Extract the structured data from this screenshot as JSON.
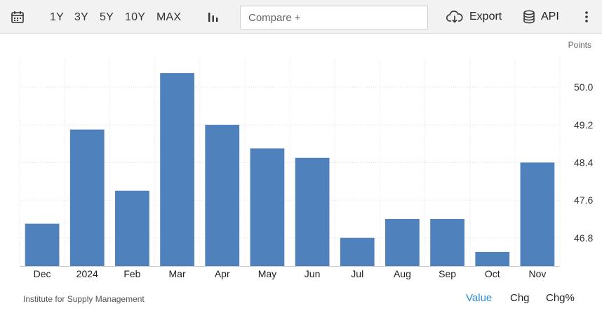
{
  "toolbar": {
    "range_buttons": [
      "1Y",
      "3Y",
      "5Y",
      "10Y",
      "MAX"
    ],
    "compare_placeholder": "Compare +",
    "export_label": "Export",
    "api_label": "API",
    "icons": [
      "calendar-icon",
      "bar-chart-icon",
      "cloud-download-icon",
      "database-icon",
      "more-vertical-icon"
    ]
  },
  "chart_data": {
    "type": "bar",
    "categories": [
      "Dec",
      "2024",
      "Feb",
      "Mar",
      "Apr",
      "May",
      "Jun",
      "Jul",
      "Aug",
      "Sep",
      "Oct",
      "Nov"
    ],
    "values": [
      47.1,
      49.1,
      47.8,
      50.3,
      49.2,
      48.7,
      48.5,
      46.8,
      47.2,
      47.2,
      46.5,
      48.4
    ],
    "ylabel": "Points",
    "yticks": [
      46.8,
      47.6,
      48.4,
      49.2,
      50.0
    ],
    "ylim": [
      46.2,
      50.6
    ],
    "bar_color": "#4f81bd",
    "grid": true,
    "axis_side": "right"
  },
  "footer": {
    "source": "Institute for Supply Management",
    "tabs": [
      "Value",
      "Chg",
      "Chg%"
    ],
    "active_tab": "Value",
    "active_color": "#2a8fd6"
  }
}
